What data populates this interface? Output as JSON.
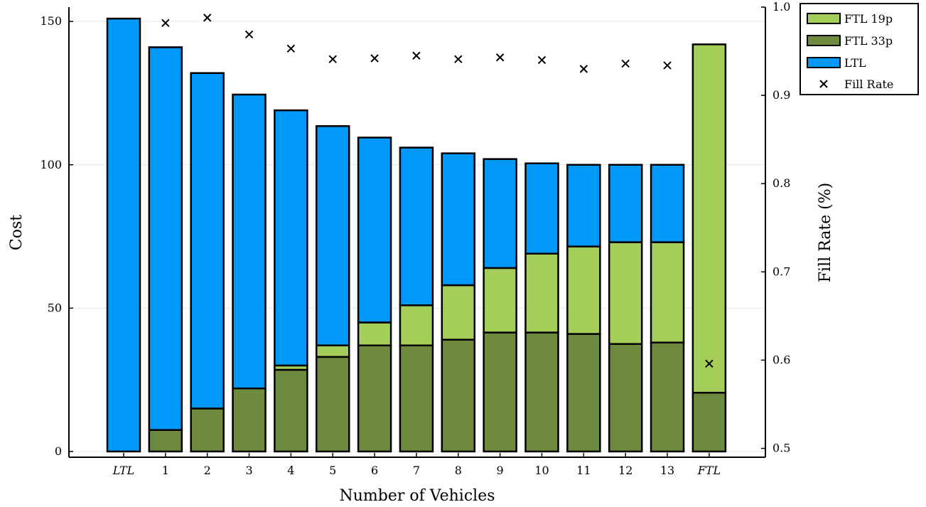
{
  "chart_data": {
    "type": "bar",
    "stacked": true,
    "categories": [
      "LTL",
      "1",
      "2",
      "3",
      "4",
      "5",
      "6",
      "7",
      "8",
      "9",
      "10",
      "11",
      "12",
      "13",
      "FTL"
    ],
    "italic_categories": [
      "LTL",
      "FTL"
    ],
    "series": [
      {
        "name": "FTL 33p",
        "color": "#6d8a3e",
        "values": [
          0,
          7.5,
          15,
          22,
          28.5,
          33,
          37,
          37,
          39,
          41.5,
          41.5,
          41,
          37.5,
          38,
          20.5
        ]
      },
      {
        "name": "FTL 19p",
        "color": "#a4cd5a",
        "values": [
          0,
          0,
          0,
          0,
          1.5,
          4,
          8,
          14,
          19,
          22.5,
          27.5,
          30.5,
          35.5,
          35,
          121.5
        ]
      },
      {
        "name": "LTL",
        "color": "#0099f9",
        "values": [
          151,
          133.5,
          117,
          102.5,
          89,
          76.5,
          64.5,
          55,
          46,
          38,
          31.5,
          28.5,
          27,
          27,
          0
        ]
      }
    ],
    "fill_rate": {
      "name": "Fill Rate",
      "marker": "x",
      "values": [
        null,
        0.982,
        0.988,
        0.969,
        0.953,
        0.941,
        0.942,
        0.945,
        0.941,
        0.943,
        0.94,
        0.93,
        0.936,
        0.934,
        0.596
      ]
    },
    "xlabel": "Number of Vehicles",
    "ylabel": "Cost",
    "y2label": "Fill Rate (%)",
    "ylim": [
      -2,
      155
    ],
    "yticks": [
      0,
      50,
      100,
      150
    ],
    "y2lim": [
      0.49,
      1.0
    ],
    "y2ticks": [
      "0.5",
      "0.6",
      "0.7",
      "0.8",
      "0.9",
      "1.0"
    ],
    "grid": true,
    "legend_position": "top-right",
    "legend": [
      "FTL 19p",
      "FTL 33p",
      "LTL",
      "Fill Rate"
    ]
  }
}
